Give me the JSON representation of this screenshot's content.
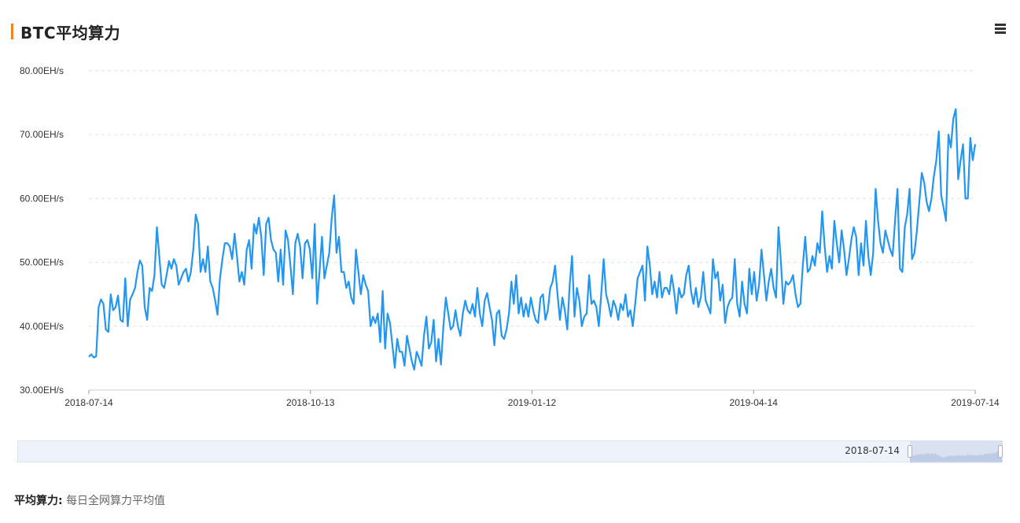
{
  "header": {
    "title": "BTC平均算力"
  },
  "icons": {
    "menu": "hamburger-menu-icon"
  },
  "colors": {
    "accent": "#f5821f",
    "line": "#2196f3",
    "grid": "#e5e5e5",
    "zoom_fill": "#c9d3ea"
  },
  "chart_data": {
    "type": "line",
    "title": "BTC平均算力",
    "x_start": "2018-07-14",
    "x_end": "2019-07-14",
    "x_ticks": [
      "2018-07-14",
      "2018-10-13",
      "2019-01-12",
      "2019-04-14",
      "2019-07-14"
    ],
    "y_ticks": [
      "30.00EH/s",
      "40.00EH/s",
      "50.00EH/s",
      "60.00EH/s",
      "70.00EH/s",
      "80.00EH/s"
    ],
    "ylim": [
      30,
      80
    ],
    "grid": true,
    "series": [
      {
        "values": [
          35.2,
          35.6,
          35.1,
          35.3,
          43.0,
          44.2,
          43.5,
          39.5,
          39.1,
          45.0,
          42.5,
          43.0,
          44.8,
          41.0,
          40.7,
          47.5,
          40.0,
          44.2,
          45.0,
          46.0,
          48.5,
          50.3,
          49.5,
          43.0,
          41.0,
          46.0,
          45.5,
          48.0,
          55.5,
          51.0,
          46.5,
          46.0,
          48.0,
          50.2,
          49.0,
          50.5,
          49.5,
          46.5,
          47.5,
          48.5,
          49.0,
          47.0,
          48.5,
          52.0,
          57.5,
          56.0,
          48.5,
          50.5,
          48.5,
          52.5,
          47.0,
          46.0,
          44.0,
          41.8,
          47.5,
          50.5,
          53.0,
          53.0,
          52.5,
          50.5,
          54.5,
          51.0,
          47.0,
          48.5,
          46.5,
          52.0,
          53.5,
          49.0,
          56.0,
          54.5,
          57.0,
          54.0,
          48.0,
          56.0,
          57.0,
          53.5,
          52.0,
          51.5,
          47.0,
          52.0,
          46.5,
          55.0,
          53.5,
          49.5,
          45.0,
          53.0,
          54.5,
          52.5,
          47.5,
          53.0,
          53.5,
          52.0,
          47.5,
          56.0,
          43.5,
          48.5,
          54.0,
          47.5,
          49.5,
          51.5,
          57.0,
          60.5,
          51.5,
          54.0,
          48.5,
          48.5,
          46.0,
          47.0,
          44.5,
          43.5,
          52.0,
          48.5,
          45.0,
          48.0,
          46.5,
          45.5,
          40.0,
          41.5,
          40.5,
          42.0,
          37.5,
          45.5,
          36.5,
          42.0,
          40.5,
          37.0,
          33.5,
          38.0,
          36.0,
          36.0,
          33.8,
          38.5,
          36.5,
          34.5,
          33.2,
          36.0,
          35.0,
          33.8,
          38.5,
          41.5,
          36.5,
          37.5,
          41.0,
          34.5,
          38.0,
          34.0,
          40.0,
          44.5,
          42.0,
          39.5,
          40.0,
          42.5,
          40.0,
          38.5,
          42.0,
          44.0,
          42.5,
          42.0,
          43.5,
          41.5,
          46.0,
          42.0,
          40.0,
          44.0,
          45.2,
          43.0,
          41.0,
          37.0,
          42.0,
          42.5,
          38.5,
          38.0,
          39.5,
          42.0,
          47.0,
          43.5,
          48.0,
          42.0,
          44.5,
          41.5,
          43.5,
          41.5,
          44.5,
          42.5,
          41.0,
          40.5,
          44.5,
          45.0,
          41.0,
          42.5,
          46.0,
          47.0,
          49.5,
          45.0,
          41.0,
          44.5,
          42.5,
          39.5,
          46.5,
          51.0,
          41.5,
          46.0,
          44.0,
          40.0,
          41.5,
          42.0,
          48.0,
          43.5,
          44.0,
          43.0,
          40.0,
          45.0,
          50.5,
          45.0,
          43.5,
          41.5,
          44.0,
          43.0,
          41.0,
          43.5,
          42.5,
          45.0,
          41.5,
          42.5,
          40.0,
          43.5,
          47.5,
          48.5,
          49.5,
          44.0,
          52.5,
          49.5,
          45.0,
          47.0,
          44.5,
          48.5,
          44.5,
          46.0,
          46.0,
          45.0,
          48.0,
          45.5,
          42.0,
          46.0,
          44.5,
          45.0,
          48.0,
          49.5,
          45.5,
          43.5,
          46.0,
          43.0,
          44.5,
          48.5,
          44.0,
          43.0,
          42.0,
          50.5,
          47.5,
          48.5,
          44.0,
          46.5,
          40.5,
          43.0,
          44.0,
          44.5,
          50.5,
          43.5,
          41.5,
          47.0,
          43.5,
          42.0,
          49.0,
          45.0,
          48.5,
          44.0,
          46.5,
          52.0,
          48.0,
          44.0,
          47.0,
          49.0,
          46.0,
          44.5,
          55.5,
          50.0,
          43.5,
          47.0,
          46.5,
          47.0,
          48.0,
          45.0,
          43.0,
          43.5,
          49.5,
          54.0,
          48.5,
          49.0,
          51.0,
          49.5,
          53.0,
          51.5,
          58.0,
          52.5,
          48.5,
          51.0,
          49.0,
          56.5,
          53.0,
          50.0,
          55.0,
          52.0,
          48.0,
          50.5,
          53.5,
          55.5,
          54.0,
          48.0,
          53.0,
          49.5,
          56.5,
          51.0,
          48.0,
          51.5,
          61.5,
          56.5,
          53.0,
          51.5,
          55.0,
          53.5,
          52.0,
          51.0,
          56.5,
          61.5,
          49.0,
          48.5,
          55.5,
          57.5,
          61.5,
          50.5,
          51.5,
          55.0,
          59.5,
          64.0,
          62.5,
          59.5,
          58.0,
          60.0,
          63.5,
          66.0,
          70.5,
          60.5,
          58.5,
          56.5,
          70.0,
          68.0,
          72.5,
          74.0,
          63.0,
          66.0,
          68.5,
          60.0,
          60.0,
          69.5,
          66.0,
          68.5
        ]
      }
    ]
  },
  "zoom": {
    "label": "2018-07-14"
  },
  "footer": {
    "note_label": "平均算力:",
    "note_text": "每日全网算力平均值"
  }
}
